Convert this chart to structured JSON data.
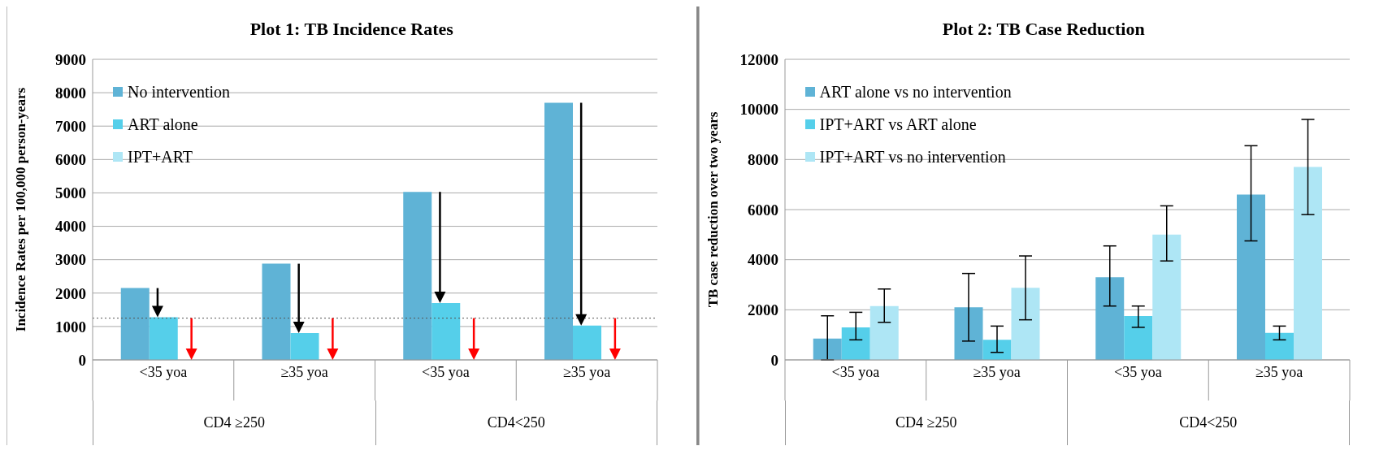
{
  "chart_data": [
    {
      "type": "bar",
      "title": "Plot 1: TB Incidence Rates",
      "ylabel": "Incidence Rates per 100,000  person-years",
      "categories": [
        "<35 yoa",
        "≥35 yoa",
        "<35 yoa",
        "≥35 yoa"
      ],
      "annotations": [
        "CD4 ≥250",
        "CD4<250"
      ],
      "series": [
        {
          "name": "No intervention",
          "color": "#5fb3d6",
          "values": [
            2150,
            2880,
            5030,
            7700
          ]
        },
        {
          "name": "ART alone",
          "color": "#55cfea",
          "values": [
            1280,
            800,
            1700,
            1030
          ]
        },
        {
          "name": "IPT+ART",
          "color": "#aee6f5",
          "values": [
            0,
            0,
            0,
            0
          ]
        }
      ],
      "ylim": [
        0,
        9000
      ],
      "yticks": [
        0,
        1000,
        2000,
        3000,
        4000,
        5000,
        6000,
        7000,
        8000,
        9000
      ],
      "grid": "y",
      "legend": "top left",
      "ref_lines": [
        {
          "axis": "y",
          "value": 1250,
          "color": "#555555",
          "line_style": "dotted"
        }
      ]
    },
    {
      "type": "bar",
      "title": "Plot 2: TB Case Reduction",
      "ylabel": "TB case reduction over two years",
      "categories": [
        "<35 yoa",
        "≥35 yoa",
        "<35 yoa",
        "≥35 yoa"
      ],
      "annotations": [
        "CD4 ≥250",
        "CD4<250"
      ],
      "series": [
        {
          "name": "ART alone vs no intervention",
          "color": "#5fb3d6",
          "values": [
            850,
            2100,
            3300,
            6600
          ],
          "errors": [
            [
              0,
              1760
            ],
            [
              750,
              3450
            ],
            [
              2150,
              4550
            ],
            [
              4750,
              8550
            ]
          ]
        },
        {
          "name": "IPT+ART vs ART alone",
          "color": "#55cfea",
          "values": [
            1300,
            800,
            1750,
            1080
          ],
          "errors": [
            [
              800,
              1900
            ],
            [
              300,
              1350
            ],
            [
              1300,
              2150
            ],
            [
              800,
              1350
            ]
          ]
        },
        {
          "name": "IPT+ART vs no intervention",
          "color": "#aee6f5",
          "values": [
            2150,
            2880,
            5000,
            7700
          ],
          "errors": [
            [
              1500,
              2830
            ],
            [
              1600,
              4150
            ],
            [
              3950,
              6150
            ],
            [
              5800,
              9600
            ]
          ]
        }
      ],
      "ylim": [
        0,
        12000
      ],
      "yticks": [
        0,
        2000,
        4000,
        6000,
        8000,
        10000,
        12000
      ],
      "grid": "y",
      "legend": "top left"
    }
  ]
}
